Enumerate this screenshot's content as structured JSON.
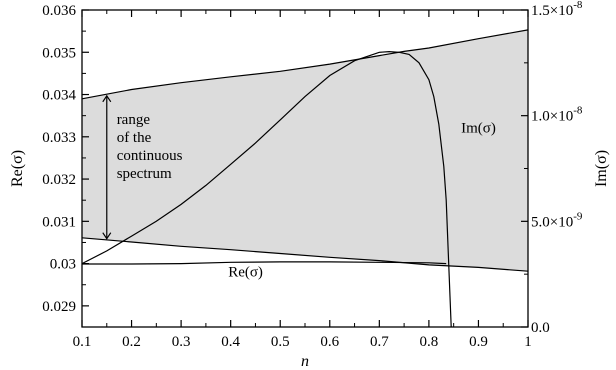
{
  "chart_data": {
    "type": "line",
    "title": "",
    "xlabel": "n",
    "ylabel_left": "Re(σ)",
    "ylabel_right": "Im(σ)",
    "xlim": [
      0.1,
      1.0
    ],
    "ylim_left": [
      0.0285,
      0.036
    ],
    "ylim_right": [
      0.0,
      1.5e-08
    ],
    "x_ticks": [
      0.1,
      0.2,
      0.3,
      0.4,
      0.5,
      0.6,
      0.7,
      0.8,
      0.9,
      1.0
    ],
    "x_tick_labels": [
      "0.1",
      "0.2",
      "0.3",
      "0.4",
      "0.5",
      "0.6",
      "0.7",
      "0.8",
      "0.9",
      "1"
    ],
    "y_left_ticks": [
      0.029,
      0.03,
      0.031,
      0.032,
      0.033,
      0.034,
      0.035,
      0.036
    ],
    "y_left_tick_labels": [
      "0.029",
      "0.03",
      "0.031",
      "0.032",
      "0.033",
      "0.034",
      "0.035",
      "0.036"
    ],
    "y_right_ticks": [
      0.0,
      5e-09,
      1e-08,
      1.5e-08
    ],
    "y_right_tick_labels": [
      {
        "base": "0.0",
        "exp": ""
      },
      {
        "base": "5.0×10",
        "exp": "-9"
      },
      {
        "base": "1.0×10",
        "exp": "-8"
      },
      {
        "base": "1.5×10",
        "exp": "-8"
      }
    ],
    "continuous_spectrum_band": {
      "upper": {
        "x": [
          0.1,
          0.2,
          0.3,
          0.4,
          0.5,
          0.6,
          0.7,
          0.75,
          0.8,
          0.9,
          1.0
        ],
        "y": [
          0.0339,
          0.03412,
          0.03428,
          0.03442,
          0.03455,
          0.03472,
          0.03492,
          0.03502,
          0.0351,
          0.03532,
          0.03553
        ]
      },
      "lower": {
        "x": [
          0.1,
          0.2,
          0.3,
          0.4,
          0.5,
          0.6,
          0.7,
          0.8,
          0.9,
          1.0
        ],
        "y": [
          0.03061,
          0.03051,
          0.03041,
          0.03033,
          0.03024,
          0.03015,
          0.03007,
          0.02997,
          0.02991,
          0.02982
        ]
      },
      "color": "#dcdcdc"
    },
    "series": [
      {
        "name": "Re(σ)",
        "axis": "left",
        "x": [
          0.1,
          0.2,
          0.3,
          0.4,
          0.5,
          0.6,
          0.7,
          0.8,
          0.835
        ],
        "y": [
          0.02999,
          0.02999,
          0.03,
          0.03003,
          0.03004,
          0.03004,
          0.03003,
          0.03002,
          0.03
        ]
      },
      {
        "name": "Im(σ)",
        "axis": "right",
        "x": [
          0.1,
          0.15,
          0.2,
          0.25,
          0.3,
          0.35,
          0.4,
          0.45,
          0.5,
          0.55,
          0.6,
          0.65,
          0.7,
          0.72,
          0.74,
          0.76,
          0.78,
          0.8,
          0.81,
          0.82,
          0.83,
          0.835,
          0.84,
          0.845
        ],
        "y": [
          3e-09,
          3.6e-09,
          4.3e-09,
          5e-09,
          5.8e-09,
          6.7e-09,
          7.7e-09,
          8.7e-09,
          9.8e-09,
          1.09e-08,
          1.19e-08,
          1.26e-08,
          1.3e-08,
          1.303e-08,
          1.3e-08,
          1.29e-08,
          1.25e-08,
          1.17e-08,
          1.09e-08,
          9.6e-09,
          7.6e-09,
          6e-09,
          3e-09,
          0.0
        ]
      }
    ],
    "annotations": {
      "range_lines": [
        "range",
        "of the",
        "continuous",
        "spectrum"
      ],
      "range_arrow_x": 0.15,
      "range_arrow_y": [
        0.03059,
        0.03397
      ],
      "range_text_x": 0.17,
      "range_text_y": 0.0333,
      "im_label": "Im(σ)",
      "im_label_pos": [
        0.865,
        0.0331
      ],
      "re_label": "Re(σ)",
      "re_label_pos": [
        0.395,
        0.0297
      ]
    }
  }
}
